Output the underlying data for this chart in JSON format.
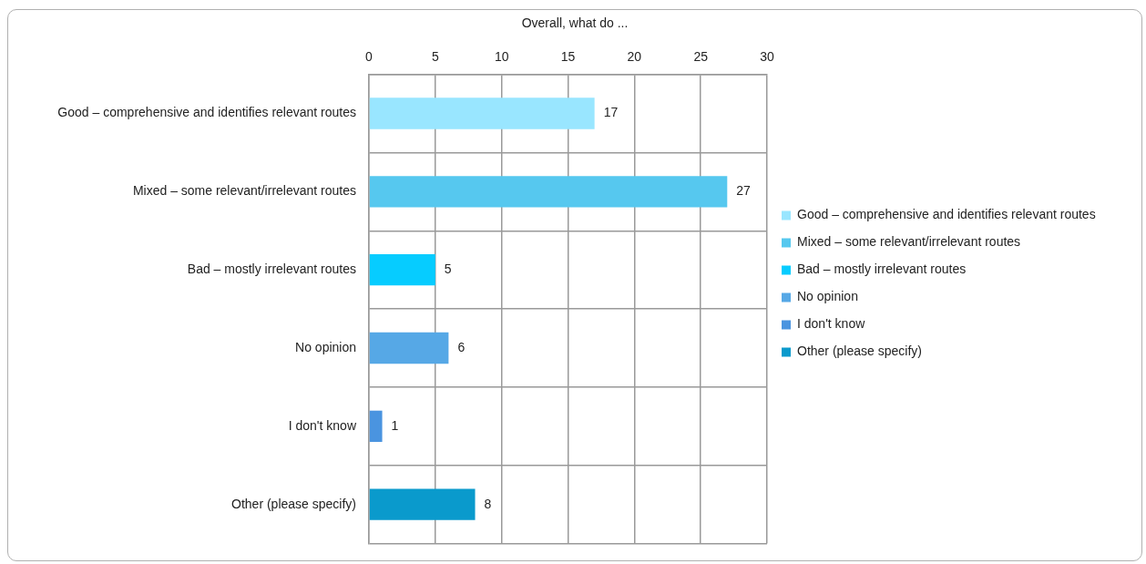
{
  "chart_data": {
    "type": "bar",
    "orientation": "horizontal",
    "title": "Overall, what do ...",
    "categories": [
      "Good – comprehensive and identifies relevant routes",
      "Mixed – some relevant/irrelevant routes",
      "Bad – mostly irrelevant routes",
      "No opinion",
      "I don't know",
      "Other (please specify)"
    ],
    "series": [
      {
        "name": "Good – comprehensive and identifies relevant routes",
        "color": "#99e6ff",
        "values": [
          17,
          null,
          null,
          null,
          null,
          null
        ]
      },
      {
        "name": "Mixed – some relevant/irrelevant routes",
        "color": "#56c8ef",
        "values": [
          null,
          27,
          null,
          null,
          null,
          null
        ]
      },
      {
        "name": "Bad – mostly irrelevant routes",
        "color": "#06ccff",
        "values": [
          null,
          null,
          5,
          null,
          null,
          null
        ]
      },
      {
        "name": "No opinion",
        "color": "#56a8e6",
        "values": [
          null,
          null,
          null,
          6,
          null,
          null
        ]
      },
      {
        "name": "I don't know",
        "color": "#4a94e0",
        "values": [
          null,
          null,
          null,
          null,
          1,
          null
        ]
      },
      {
        "name": "Other (please specify)",
        "color": "#0a9acc",
        "values": [
          null,
          null,
          null,
          null,
          null,
          8
        ]
      }
    ],
    "xlim": [
      0,
      30
    ],
    "xticks": [
      0,
      5,
      10,
      15,
      20,
      25,
      30
    ],
    "grid": true,
    "legend": "right",
    "data_labels": true
  }
}
